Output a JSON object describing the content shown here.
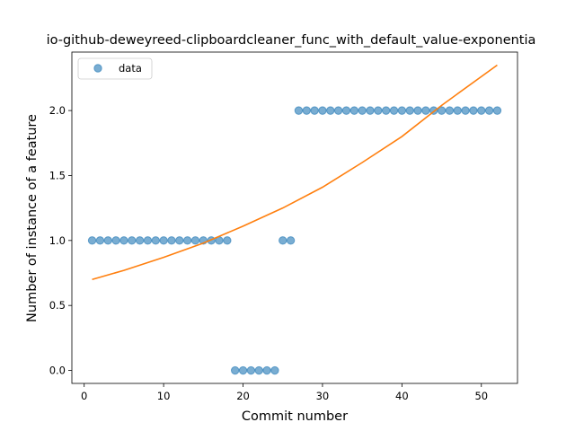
{
  "chart_data": {
    "type": "scatter",
    "title": "io-github-deweyreed-clipboardcleaner_func_with_default_value-exponentia",
    "xlabel": "Commit number",
    "ylabel": "Number of instance of a feature",
    "xlim": [
      -1.55,
      54.55
    ],
    "ylim": [
      -0.1,
      2.45
    ],
    "xticks": [
      0,
      10,
      20,
      30,
      40,
      50
    ],
    "yticks": [
      0.0,
      0.5,
      1.0,
      1.5,
      2.0
    ],
    "xtick_labels": [
      "0",
      "10",
      "20",
      "30",
      "40",
      "50"
    ],
    "ytick_labels": [
      "0.0",
      "0.5",
      "1.0",
      "1.5",
      "2.0"
    ],
    "legend_position": "upper-left",
    "series": [
      {
        "name": "data",
        "kind": "scatter",
        "color": "#1f77b4",
        "x": [
          1,
          2,
          3,
          4,
          5,
          6,
          7,
          8,
          9,
          10,
          11,
          12,
          13,
          14,
          15,
          16,
          17,
          18,
          19,
          20,
          21,
          22,
          23,
          24,
          25,
          26,
          27,
          28,
          29,
          30,
          31,
          32,
          33,
          34,
          35,
          36,
          37,
          38,
          39,
          40,
          41,
          42,
          43,
          44,
          45,
          46,
          47,
          48,
          49,
          50,
          51,
          52
        ],
        "y": [
          1,
          1,
          1,
          1,
          1,
          1,
          1,
          1,
          1,
          1,
          1,
          1,
          1,
          1,
          1,
          1,
          1,
          1,
          0,
          0,
          0,
          0,
          0,
          0,
          1,
          1,
          2,
          2,
          2,
          2,
          2,
          2,
          2,
          2,
          2,
          2,
          2,
          2,
          2,
          2,
          2,
          2,
          2,
          2,
          2,
          2,
          2,
          2,
          2,
          2,
          2,
          2
        ]
      },
      {
        "kind": "line",
        "color": "#ff7f0e",
        "x": [
          1,
          5,
          10,
          15,
          20,
          25,
          30,
          35,
          40,
          45,
          52
        ],
        "y": [
          0.7,
          0.77,
          0.87,
          0.98,
          1.11,
          1.25,
          1.41,
          1.6,
          1.8,
          2.04,
          2.35
        ]
      }
    ]
  }
}
